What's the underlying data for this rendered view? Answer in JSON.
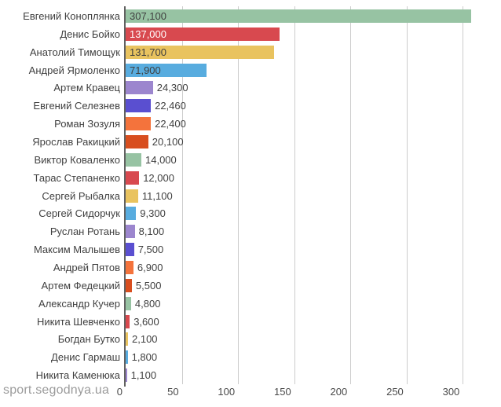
{
  "chart_data": {
    "type": "bar",
    "orientation": "horizontal",
    "title": "",
    "xlabel": "",
    "ylabel": "",
    "legend": "none",
    "grid": "vertical",
    "categories": [
      "Евгений Коноплянка",
      "Денис Бойко",
      "Анатолий Тимощук",
      "Андрей Ярмоленко",
      "Артем Кравец",
      "Евгений Селезнев",
      "Роман Зозуля",
      "Ярослав Ракицкий",
      "Виктор Коваленко",
      "Тарас Степаненко",
      "Сергей Рыбалка",
      "Сергей Сидорчук",
      "Руслан Ротань",
      "Максим Малышев",
      "Андрей Пятов",
      "Артем Федецкий",
      "Александр Кучер",
      "Никита Шевченко",
      "Богдан Бутко",
      "Денис Гармаш",
      "Никита Каменюка"
    ],
    "values": [
      307100,
      137000,
      131700,
      71900,
      24300,
      22460,
      22400,
      20100,
      14000,
      12000,
      11100,
      9300,
      8100,
      7500,
      6900,
      5500,
      4800,
      3600,
      2100,
      1800,
      1100
    ],
    "value_labels": [
      "307,100",
      "137,000",
      "131,700",
      "71,900",
      "24,300",
      "22,460",
      "22,400",
      "20,100",
      "14,000",
      "12,000",
      "11,100",
      "9,300",
      "8,100",
      "7,500",
      "6,900",
      "5,500",
      "4,800",
      "3,600",
      "2,100",
      "1,800",
      "1,100"
    ],
    "xlim": [
      0,
      334000
    ],
    "x_ticks": [
      0,
      50000,
      100000,
      150000,
      200000,
      250000,
      300000
    ],
    "x_tick_labels": [
      "0",
      "50",
      "100",
      "150",
      "200",
      "250",
      "300"
    ],
    "palette": [
      "#97C3A3",
      "#D8494F",
      "#E9C35F",
      "#58ACDF",
      "#9C86CE",
      "#5A4FD0",
      "#F4733C",
      "#D84E1F"
    ]
  },
  "watermark": "sport.segodnya.ua",
  "colors": {
    "background": "#ffffff",
    "axis_line": "#616161",
    "gridline": "#cccccc",
    "category_text": "#3f3f3f",
    "value_text": "#404040",
    "value_text_on_dark": "#ffffff",
    "tick_text": "#4a4a4a",
    "watermark_text": "#9b9b9b"
  }
}
